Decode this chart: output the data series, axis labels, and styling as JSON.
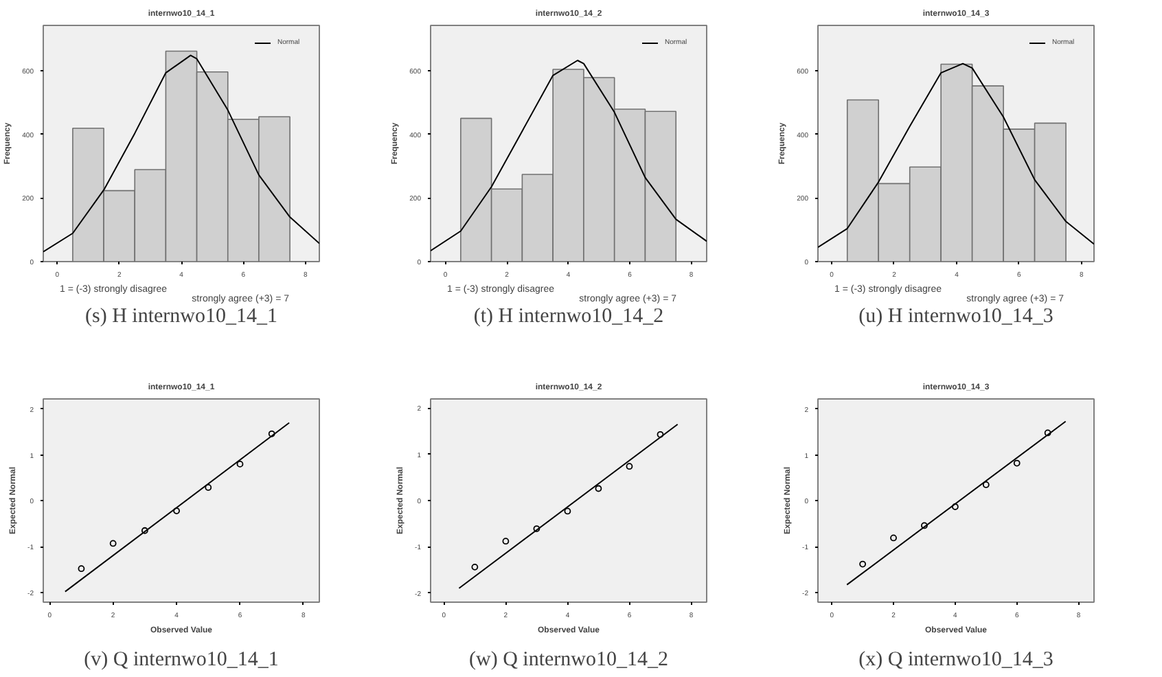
{
  "chart_data": [
    {
      "type": "histogram",
      "title": "internwo10_14_1",
      "xlabel": "1 = (-3) strongly disagree",
      "ylabel": "Frequency",
      "bins": [
        0.5,
        1.5,
        2.5,
        3.5,
        4.5,
        5.5,
        6.5,
        7.5
      ],
      "values": [
        419,
        223,
        289,
        661,
        596,
        447,
        455
      ],
      "color": "#d0d0d0",
      "series": [
        {
          "type": "line",
          "name": "Normal",
          "color": "#000000",
          "x": [
            -0.45,
            0.5,
            1.52,
            2.5,
            3.5,
            4.3,
            4.5,
            5.5,
            6.5,
            7.5,
            8.45
          ],
          "values": [
            31,
            89,
            228,
            403,
            593,
            648,
            637,
            476,
            272,
            140,
            57
          ]
        }
      ],
      "xlim": [
        -0.45,
        8.45
      ],
      "ylim": [
        0,
        742
      ],
      "xticks": [
        0,
        2,
        4,
        6,
        8
      ],
      "yticks": [
        0,
        200,
        400,
        600
      ],
      "legend": "top right",
      "annotations": [
        "strongly agree (+3) = 7",
        "(s) H internwo10_14_1"
      ]
    },
    {
      "type": "histogram",
      "title": "internwo10_14_2",
      "xlabel": "1 = (-3) strongly disagree",
      "ylabel": "Frequency",
      "bins": [
        0.5,
        1.5,
        2.5,
        3.5,
        4.5,
        5.5,
        6.5,
        7.5
      ],
      "values": [
        450,
        228,
        274,
        604,
        578,
        479,
        472
      ],
      "color": "#d0d0d0",
      "series": [
        {
          "type": "line",
          "name": "Normal",
          "color": "#000000",
          "x": [
            -0.48,
            0.5,
            1.5,
            2.5,
            3.5,
            4.3,
            4.5,
            5.5,
            6.5,
            7.5,
            8.5
          ],
          "values": [
            34,
            96,
            235,
            410,
            585,
            632,
            622,
            469,
            264,
            133,
            64
          ]
        }
      ],
      "xlim": [
        -0.48,
        8.5
      ],
      "ylim": [
        0,
        742
      ],
      "xticks": [
        0,
        2,
        4,
        6,
        8
      ],
      "yticks": [
        0,
        200,
        400,
        600
      ],
      "legend": "top right",
      "annotations": [
        "strongly agree (+3) = 7",
        "(t) H internwo10_14_2"
      ]
    },
    {
      "type": "histogram",
      "title": "internwo10_14_3",
      "xlabel": "1 = (-3) strongly disagree",
      "ylabel": "Frequency",
      "bins": [
        0.5,
        1.5,
        2.5,
        3.5,
        4.5,
        5.5,
        6.5,
        7.5
      ],
      "values": [
        508,
        245,
        297,
        620,
        552,
        416,
        435
      ],
      "color": "#d0d0d0",
      "series": [
        {
          "type": "line",
          "name": "Normal",
          "color": "#000000",
          "x": [
            -0.44,
            0.5,
            1.5,
            2.5,
            3.5,
            4.2,
            4.5,
            5.5,
            6.5,
            7.5,
            8.4
          ],
          "values": [
            45,
            104,
            250,
            425,
            593,
            622,
            608,
            454,
            257,
            126,
            55
          ]
        }
      ],
      "xlim": [
        -0.44,
        8.4
      ],
      "ylim": [
        0,
        742
      ],
      "xticks": [
        0,
        2,
        4,
        6,
        8
      ],
      "yticks": [
        0,
        200,
        400,
        600
      ],
      "legend": "top right",
      "annotations": [
        "strongly agree (+3) = 7",
        "(u) H internwo10_14_3"
      ]
    },
    {
      "type": "scatter",
      "title": "internwo10_14_1",
      "xlabel": "Observed Value",
      "ylabel": "Expected Normal",
      "x": [
        1,
        2,
        3,
        4,
        5,
        6,
        7
      ],
      "values": [
        -1.48,
        -0.93,
        -0.65,
        -0.22,
        0.29,
        0.8,
        1.46
      ],
      "color": "#000000",
      "marker": "circle",
      "series": [
        {
          "type": "line",
          "color": "#000000",
          "marker": "none",
          "x": [
            0.49,
            7.55
          ],
          "values": [
            -1.98,
            1.7
          ]
        }
      ],
      "xlim": [
        -0.2,
        8.5
      ],
      "ylim": [
        -2.21,
        2.22
      ],
      "xticks": [
        0,
        2,
        4,
        6,
        8
      ],
      "yticks": [
        -2,
        -1,
        0,
        1,
        2
      ],
      "annotations": [
        "(v) Q internwo10_14_1"
      ]
    },
    {
      "type": "scatter",
      "title": "internwo10_14_2",
      "xlabel": "Observed Value",
      "ylabel": "Expected Normal",
      "x": [
        1,
        2,
        3,
        4,
        5,
        6,
        7
      ],
      "values": [
        -1.44,
        -0.88,
        -0.61,
        -0.23,
        0.26,
        0.74,
        1.43
      ],
      "color": "#000000",
      "marker": "circle",
      "series": [
        {
          "type": "line",
          "color": "#000000",
          "marker": "none",
          "x": [
            0.49,
            7.56
          ],
          "values": [
            -1.9,
            1.65
          ]
        }
      ],
      "xlim": [
        -0.43,
        8.5
      ],
      "ylim": [
        -2.2,
        2.2
      ],
      "xticks": [
        0,
        2,
        4,
        6,
        8
      ],
      "yticks": [
        -2,
        -1,
        0,
        1,
        2
      ],
      "annotations": [
        "(w) Q internwo10_14_2"
      ]
    },
    {
      "type": "scatter",
      "title": "internwo10_14_3",
      "xlabel": "Observed Value",
      "ylabel": "Expected Normal",
      "x": [
        1,
        2,
        3,
        4,
        5,
        6,
        7
      ],
      "values": [
        -1.38,
        -0.81,
        -0.54,
        -0.13,
        0.35,
        0.82,
        1.48
      ],
      "color": "#000000",
      "marker": "circle",
      "series": [
        {
          "type": "line",
          "color": "#000000",
          "marker": "none",
          "x": [
            0.49,
            7.58
          ],
          "values": [
            -1.83,
            1.73
          ]
        }
      ],
      "xlim": [
        -0.45,
        8.5
      ],
      "ylim": [
        -2.21,
        2.22
      ],
      "xticks": [
        0,
        2,
        4,
        6,
        8
      ],
      "yticks": [
        -2,
        -1,
        0,
        1,
        2
      ],
      "annotations": [
        "(x) Q internwo10_14_3"
      ]
    }
  ]
}
